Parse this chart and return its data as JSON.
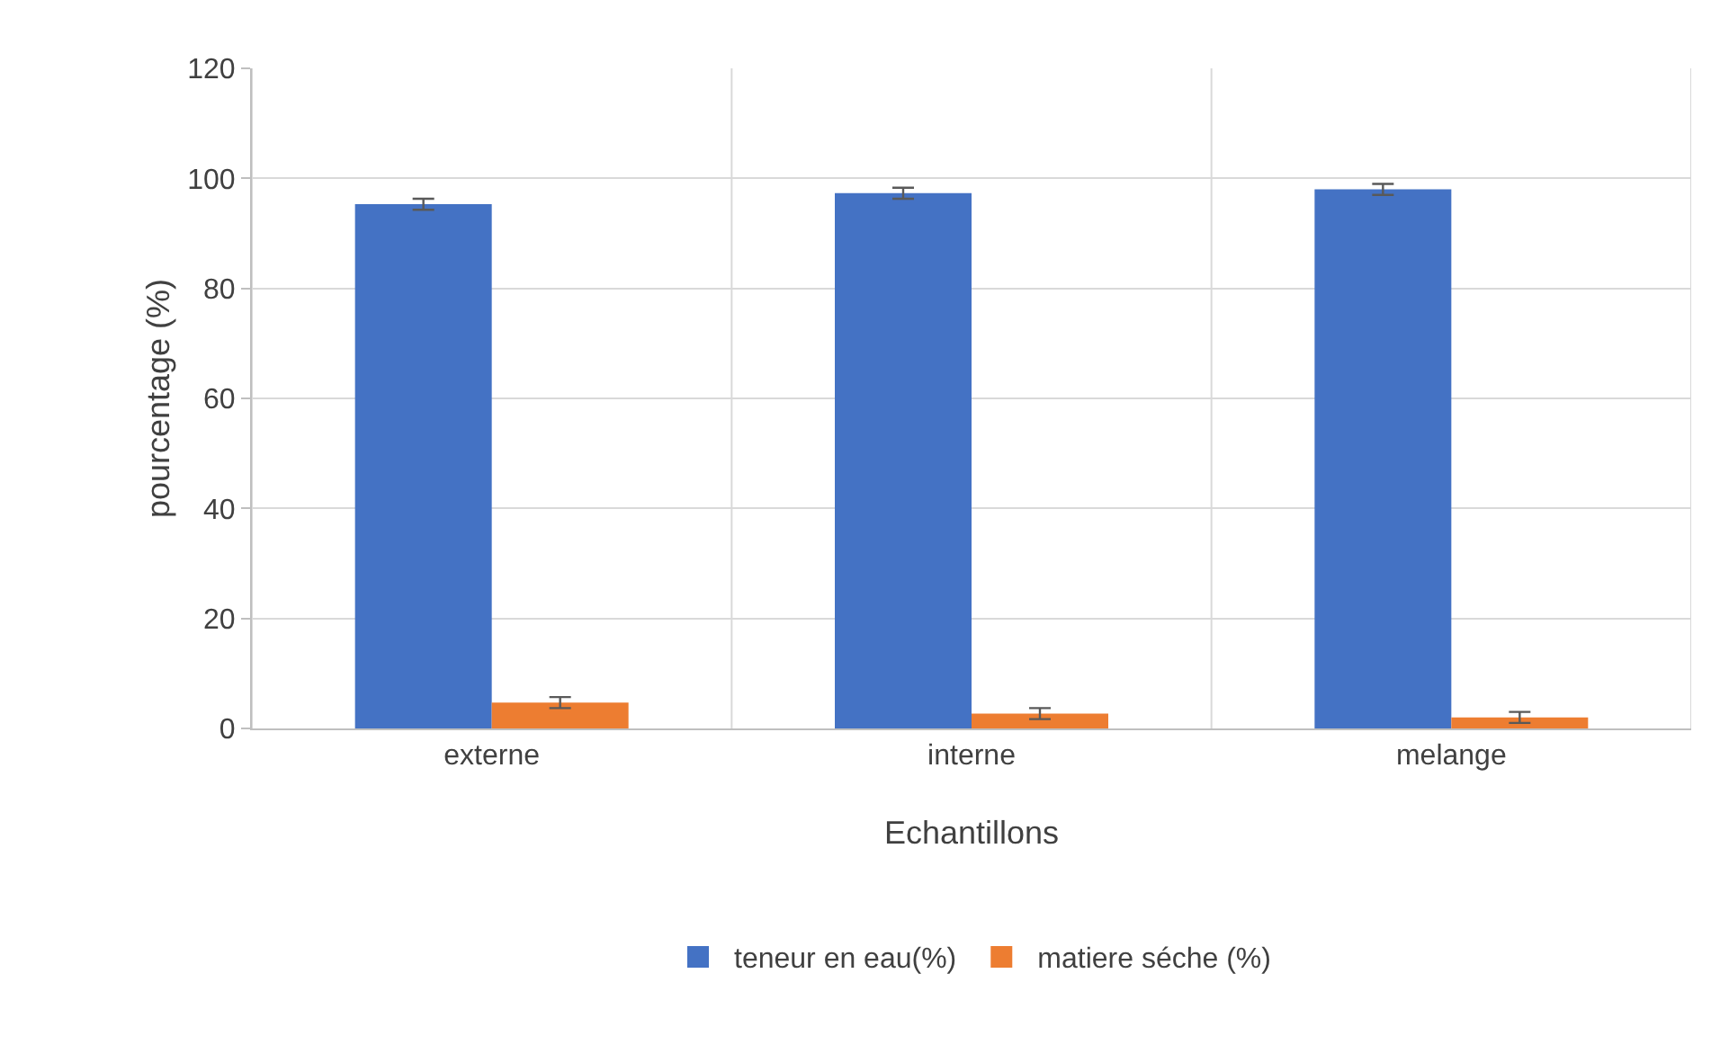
{
  "chart_data": {
    "type": "bar",
    "xlabel": "Echantillons",
    "ylabel": "pourcentage (%)",
    "categories": [
      "externe",
      "interne",
      "melange"
    ],
    "series": [
      {
        "name": "teneur en eau(%)",
        "color": "#4472c4",
        "values": [
          95.3,
          97.3,
          98
        ],
        "errors": [
          1,
          1,
          1
        ]
      },
      {
        "name": "matiere séche (%)",
        "color": "#ed7d31",
        "values": [
          4.7,
          2.7,
          2
        ],
        "errors": [
          1,
          1,
          1
        ]
      }
    ],
    "ylim": [
      0,
      120
    ],
    "yticks": [
      0,
      20,
      40,
      60,
      80,
      100,
      120
    ],
    "grid": true,
    "legend": "bottom"
  }
}
